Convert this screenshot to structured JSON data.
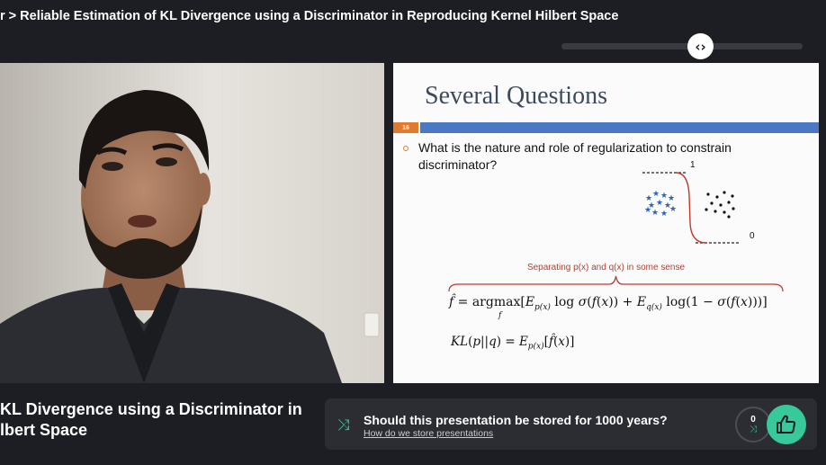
{
  "header": {
    "breadcrumb": "r > Reliable Estimation of KL Divergence using a Discriminator in Reproducing Kernel Hilbert Space"
  },
  "player": {
    "scrub_handle_icon": "left-right-arrows-icon"
  },
  "slide": {
    "title": "Several Questions",
    "slide_number": "16",
    "bullet": "What is the nature and role of regularization to constrain discriminator?",
    "diagram_top_label": "1",
    "diagram_bottom_label": "0",
    "annotation": "Separating p(x) and q(x) in some sense",
    "equation_1": "f̂ = argmax_f [E_p(x) log σ(f(x)) + E_q(x) log(1 − σ(f(x)))]",
    "equation_2": "KL(p||q) = E_p(x)[f̂(x)]"
  },
  "presentation": {
    "title_line1": "KL Divergence using a Discriminator in",
    "title_line2": "lbert Space"
  },
  "promo": {
    "question": "Should this presentation be stored for 1000 years?",
    "link": "How do we store presentations",
    "vote_count": "0",
    "icon": "shuffle-icon",
    "like_icon": "thumbs-up-icon"
  },
  "colors": {
    "background": "#1d1e23",
    "panel": "#2b2d33",
    "accent": "#37c99a",
    "slide_bar_blue": "#4a78c2",
    "slide_bar_orange": "#e07a2e",
    "annotation_red": "#c0392b"
  }
}
